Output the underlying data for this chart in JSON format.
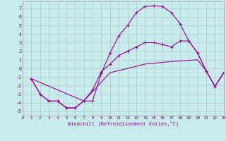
{
  "bg_color": "#c8ecec",
  "line_color": "#990099",
  "grid_color": "#aabbcc",
  "xlabel": "Windchill (Refroidissement éolien,°C)",
  "xlim": [
    0,
    23
  ],
  "ylim": [
    -5.5,
    7.8
  ],
  "xticks": [
    0,
    1,
    2,
    3,
    4,
    5,
    6,
    7,
    8,
    9,
    10,
    11,
    12,
    13,
    14,
    15,
    16,
    17,
    18,
    19,
    20,
    21,
    22,
    23
  ],
  "yticks": [
    -5,
    -4,
    -3,
    -2,
    -1,
    0,
    1,
    2,
    3,
    4,
    5,
    6,
    7
  ],
  "curve1_x": [
    1,
    2,
    3,
    4,
    5,
    6,
    7,
    8,
    9,
    10,
    11,
    12,
    13,
    14,
    15,
    16,
    17,
    18,
    19,
    20,
    21,
    22,
    23
  ],
  "curve1_y": [
    -1.2,
    -3.0,
    -3.8,
    -3.8,
    -4.6,
    -4.6,
    -3.8,
    -3.8,
    -0.6,
    1.8,
    3.8,
    5.0,
    6.5,
    7.2,
    7.3,
    7.2,
    6.5,
    5.2,
    3.2,
    1.8,
    -0.3,
    -2.1,
    -0.5
  ],
  "curve2_x": [
    1,
    2,
    3,
    4,
    5,
    6,
    7,
    8,
    9,
    10,
    11,
    12,
    13,
    14,
    15,
    16,
    17,
    18,
    19,
    20,
    21,
    22,
    23
  ],
  "curve2_y": [
    -1.2,
    -3.0,
    -3.8,
    -3.8,
    -4.6,
    -4.6,
    -3.8,
    -2.5,
    -0.4,
    0.5,
    1.5,
    2.0,
    2.5,
    3.0,
    3.0,
    2.8,
    2.5,
    3.2,
    3.2,
    1.8,
    -0.3,
    -2.1,
    -0.5
  ],
  "line3_x": [
    1,
    7,
    10,
    14,
    17,
    20,
    21,
    22,
    23
  ],
  "line3_y": [
    -1.2,
    -3.8,
    -0.5,
    0.5,
    0.8,
    1.0,
    -0.3,
    -2.1,
    -0.5
  ]
}
